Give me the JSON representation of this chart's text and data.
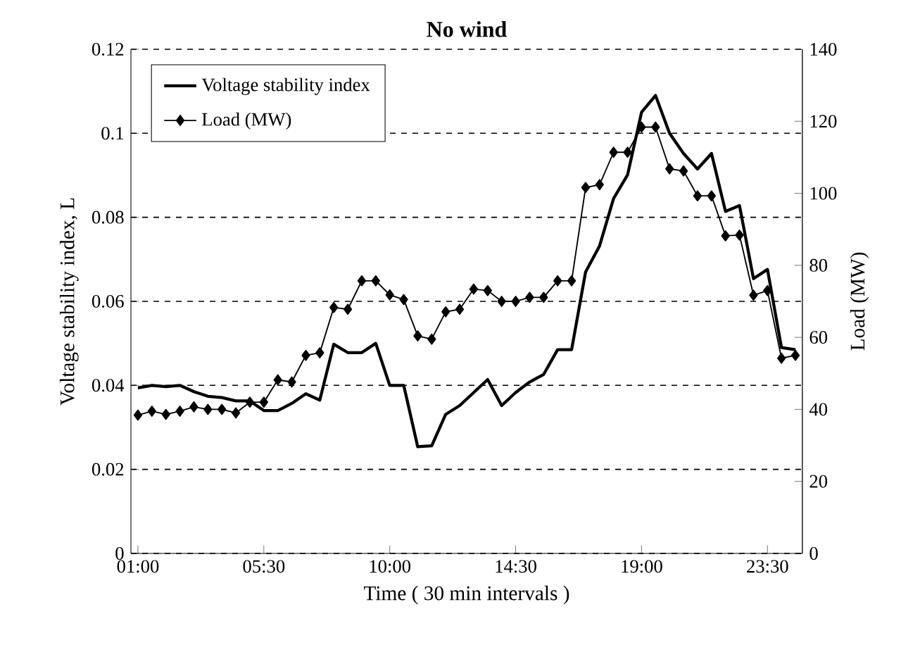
{
  "chart_data": {
    "type": "line",
    "title": "No wind",
    "xlabel": "Time ( 30 min intervals )",
    "ylabel": "Voltage stability index, L",
    "y2label": "Load (MW)",
    "categories": [
      "01:00",
      null,
      null,
      null,
      null,
      null,
      null,
      null,
      null,
      "05:30",
      null,
      null,
      null,
      null,
      null,
      null,
      null,
      null,
      "10:00",
      null,
      null,
      null,
      null,
      null,
      null,
      null,
      null,
      "14:30",
      null,
      null,
      null,
      null,
      null,
      null,
      null,
      null,
      "19:00",
      null,
      null,
      null,
      null,
      null,
      null,
      null,
      null,
      "23:30",
      null,
      null
    ],
    "series": [
      {
        "name": "Voltage stability index",
        "color": "#000000",
        "axis": "y",
        "marker": "none",
        "values": [
          0.0394,
          0.04,
          0.0397,
          0.04,
          0.0385,
          0.0374,
          0.0371,
          0.0363,
          0.0363,
          0.034,
          0.034,
          0.0357,
          0.038,
          0.0365,
          0.0498,
          0.0478,
          0.0478,
          0.05,
          0.04,
          0.04,
          0.0254,
          0.0256,
          0.0331,
          0.0352,
          0.0383,
          0.0414,
          0.0352,
          0.0383,
          0.0408,
          0.0426,
          0.0485,
          0.0485,
          0.067,
          0.0732,
          0.0845,
          0.0901,
          0.105,
          0.109,
          0.1,
          0.0952,
          0.0915,
          0.0952,
          0.0814,
          0.0828,
          0.0654,
          0.0676,
          0.049,
          0.0485
        ]
      },
      {
        "name": "Load (MW)",
        "color": "#000000",
        "axis": "y2",
        "marker": "diamond",
        "values": [
          38.4,
          39.5,
          38.6,
          39.5,
          40.7,
          40,
          40,
          39,
          42,
          42,
          48.2,
          47.6,
          55,
          55.7,
          68.3,
          67.8,
          75.7,
          75.7,
          71.8,
          70.5,
          60.4,
          59.5,
          67.1,
          67.8,
          73.4,
          73,
          70,
          70,
          71.1,
          71.1,
          75.7,
          75.7,
          101.6,
          102.4,
          111.4,
          111.4,
          118.4,
          118.4,
          106.8,
          106.2,
          99.3,
          99.3,
          88.2,
          88.4,
          71.7,
          73,
          54.2,
          55
        ]
      }
    ],
    "ylim": [
      0,
      0.12
    ],
    "yticks": [
      0,
      0.02,
      0.04,
      0.06,
      0.08,
      0.1,
      0.12
    ],
    "y2lim": [
      0,
      140
    ],
    "y2ticks": [
      0,
      20,
      40,
      60,
      80,
      100,
      120,
      140
    ],
    "grid": "y",
    "legend": "top left"
  }
}
